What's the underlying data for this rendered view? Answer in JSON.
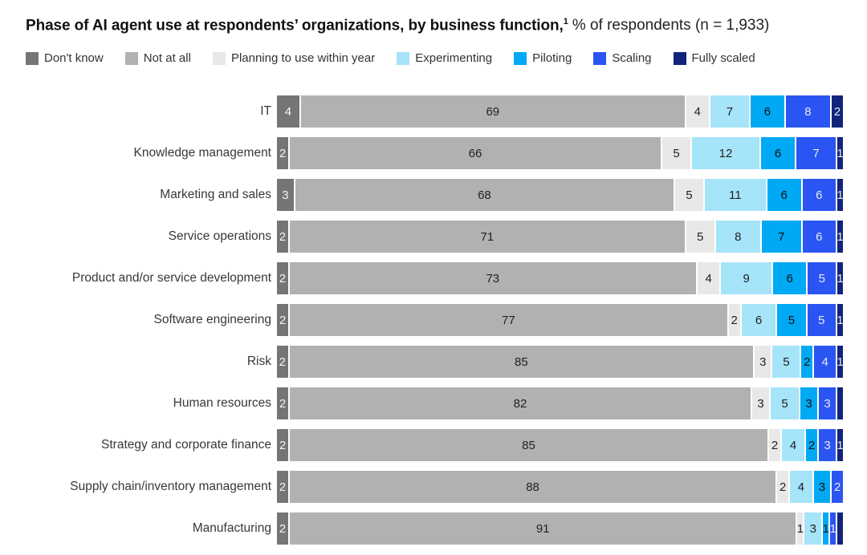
{
  "title": {
    "bold": "Phase of AI agent use at respondents’ organizations, by business function,",
    "superscript": "1",
    "regular": "% of respondents (n = 1,933)"
  },
  "chart_data": {
    "type": "bar",
    "stacked": true,
    "orientation": "horizontal",
    "unit": "% of respondents",
    "sample_size": "n = 1,933",
    "legend_position": "top",
    "grid": false,
    "categories": [
      "IT",
      "Knowledge management",
      "Marketing and sales",
      "Service operations",
      "Product and/or service development",
      "Software engineering",
      "Risk",
      "Human resources",
      "Strategy and corporate finance",
      "Supply chain/inventory management",
      "Manufacturing"
    ],
    "series": [
      {
        "name": "Don't know",
        "color": "#757575",
        "text": "#F5F5F5",
        "values": [
          4,
          2,
          3,
          2,
          2,
          2,
          2,
          2,
          2,
          2,
          2
        ]
      },
      {
        "name": "Not at all",
        "color": "#B1B1B1",
        "text": "#222222",
        "values": [
          69,
          66,
          68,
          71,
          73,
          77,
          85,
          82,
          85,
          88,
          91
        ]
      },
      {
        "name": "Planning to use within year",
        "color": "#E8E8E8",
        "text": "#222222",
        "values": [
          4,
          5,
          5,
          5,
          4,
          2,
          3,
          3,
          2,
          2,
          1
        ]
      },
      {
        "name": "Experimenting",
        "color": "#A6E4FA",
        "text": "#222222",
        "values": [
          7,
          12,
          11,
          8,
          9,
          6,
          5,
          5,
          4,
          4,
          3
        ]
      },
      {
        "name": "Piloting",
        "color": "#00A9F4",
        "text": "#111111",
        "values": [
          6,
          6,
          6,
          7,
          6,
          5,
          2,
          3,
          2,
          3,
          1
        ]
      },
      {
        "name": "Scaling",
        "color": "#2B55F2",
        "text": "#E8EAF5",
        "values": [
          8,
          7,
          6,
          6,
          5,
          5,
          4,
          3,
          3,
          2,
          1
        ]
      },
      {
        "name": "Fully scaled",
        "color": "#12237A",
        "text": "#E8E8EE",
        "values": [
          2,
          1,
          1,
          1,
          1,
          1,
          1,
          1,
          1,
          0,
          1
        ],
        "hide_label_rows": [
          7,
          10
        ]
      }
    ]
  }
}
